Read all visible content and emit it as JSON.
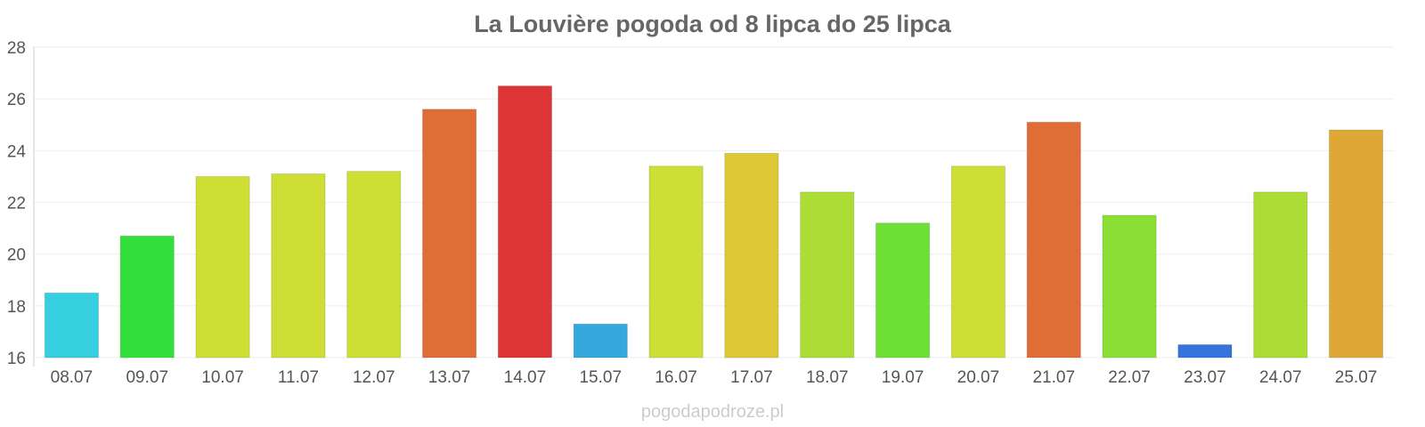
{
  "chart_data": {
    "type": "bar",
    "title": "La Louvière pogoda od 8 lipca do 25 lipca",
    "xlabel": "",
    "ylabel": "",
    "categories": [
      "08.07",
      "09.07",
      "10.07",
      "11.07",
      "12.07",
      "13.07",
      "14.07",
      "15.07",
      "16.07",
      "17.07",
      "18.07",
      "19.07",
      "20.07",
      "21.07",
      "22.07",
      "23.07",
      "24.07",
      "25.07"
    ],
    "values": [
      18.5,
      20.7,
      23.0,
      23.1,
      23.2,
      25.6,
      26.5,
      17.3,
      23.4,
      23.9,
      22.4,
      21.2,
      23.4,
      25.1,
      21.5,
      16.5,
      22.4,
      24.8
    ],
    "colors": [
      "#35cfe0",
      "#33e03b",
      "#cede35",
      "#cede35",
      "#cede35",
      "#e06d35",
      "#dd3535",
      "#35a8dd",
      "#cede35",
      "#dcc935",
      "#acdd35",
      "#6ee035",
      "#cede35",
      "#e06d35",
      "#8ade35",
      "#3574dd",
      "#acdd35",
      "#dda835"
    ],
    "ylim": [
      16,
      28
    ],
    "yticks": [
      "16",
      "18",
      "20",
      "22",
      "24",
      "26",
      "28"
    ],
    "grid": true,
    "legend": "none"
  },
  "credit": "pogodapodroze.pl"
}
